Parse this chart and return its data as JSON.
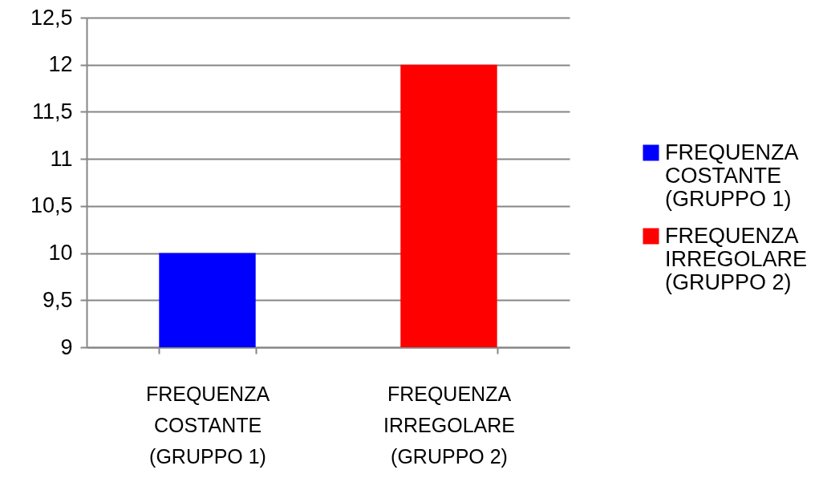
{
  "chart_data": {
    "type": "bar",
    "categories": [
      "FREQUENZA COSTANTE (GRUPPO 1)",
      "FREQUENZA IRREGOLARE (GRUPPO 2)"
    ],
    "series": [
      {
        "name": "FREQUENZA COSTANTE (GRUPPO 1)",
        "color": "#0000ff",
        "values": [
          10,
          null
        ]
      },
      {
        "name": "FREQUENZA IRREGOLARE (GRUPPO 2)",
        "color": "#ff0000",
        "values": [
          null,
          12
        ]
      }
    ],
    "ylim": [
      9,
      12.5
    ],
    "yticks": [
      9,
      {
        "value": 9.5,
        "label": "9,5"
      },
      10,
      {
        "value": 10.5,
        "label": "10,5"
      },
      11,
      {
        "value": 11.5,
        "label": "11,5"
      },
      12,
      {
        "value": 12.5,
        "label": "12,5"
      }
    ],
    "grid": "y",
    "legend": "right"
  }
}
